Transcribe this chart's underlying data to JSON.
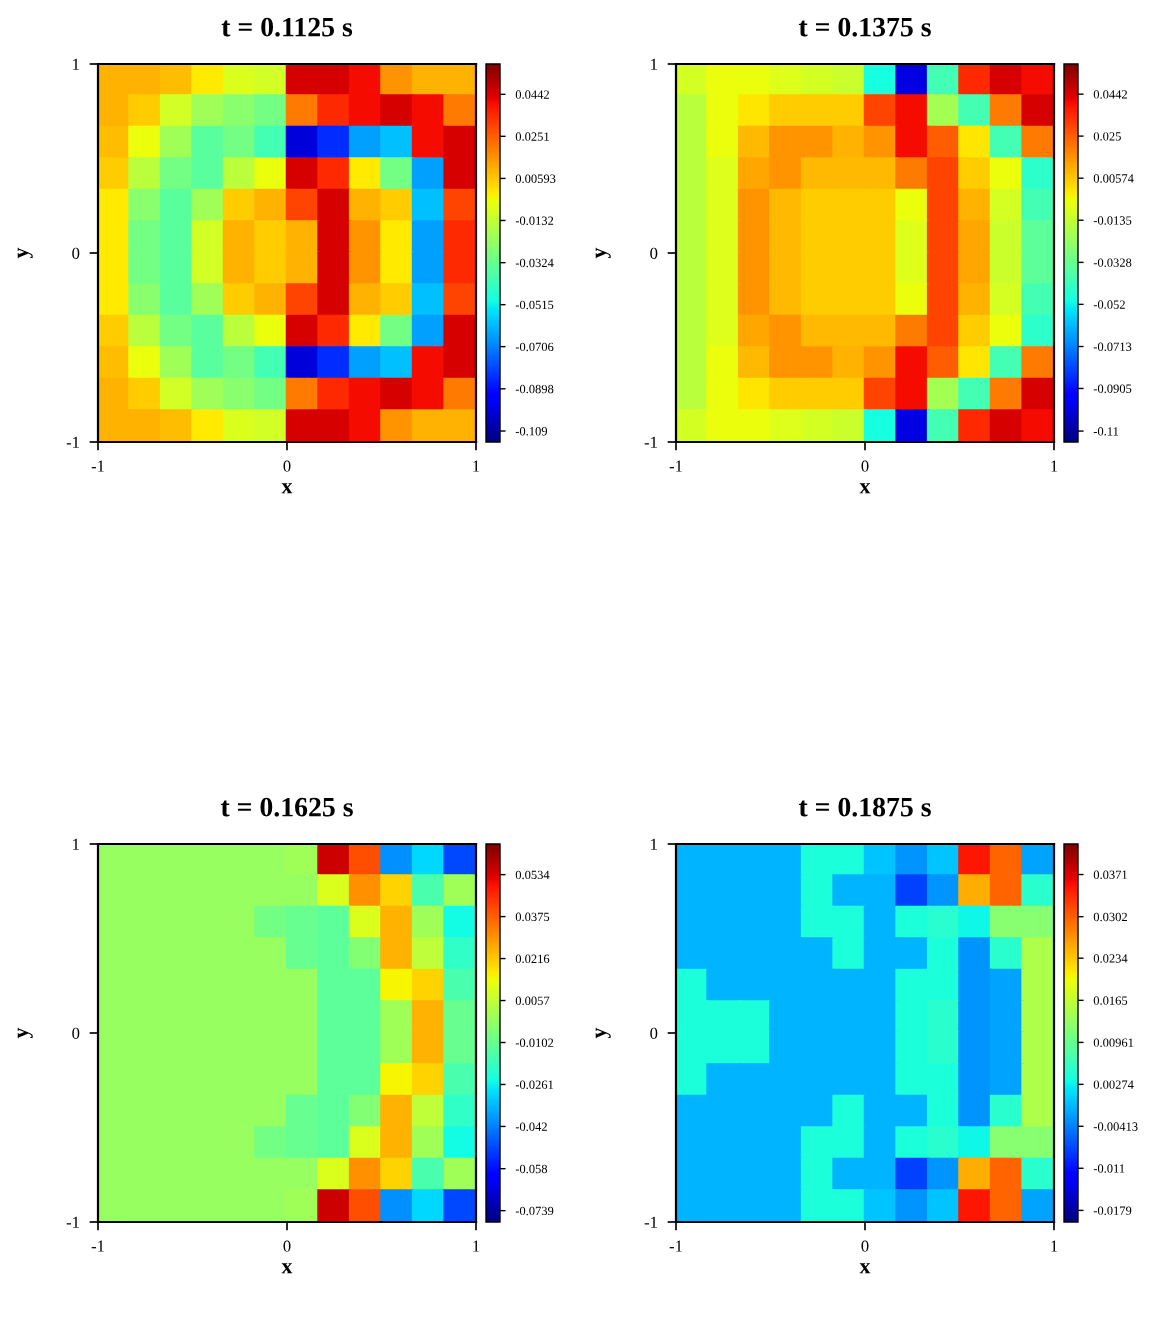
{
  "chart_data": [
    {
      "type": "scatter",
      "marker": "square",
      "title": "t = 0.1125 s",
      "xlabel": "x",
      "ylabel": "y",
      "xlim": [
        -1,
        1
      ],
      "ylim": [
        -1,
        1
      ],
      "xticks": [
        -1,
        0,
        1
      ],
      "yticks": [
        -1,
        0,
        1
      ],
      "clim": [
        -0.114,
        0.058
      ],
      "cticks": [
        0.0442,
        0.0251,
        0.00593,
        -0.0132,
        -0.0324,
        -0.0515,
        -0.0706,
        -0.0898,
        -0.109
      ],
      "x": [
        -0.917,
        -0.75,
        -0.583,
        -0.417,
        -0.25,
        -0.083,
        0.083,
        0.25,
        0.417,
        0.583,
        0.75,
        0.917,
        -0.917,
        -0.75,
        -0.583,
        -0.417,
        -0.25,
        -0.083,
        0.083,
        0.25,
        0.417,
        0.583,
        0.75,
        0.917,
        -0.917,
        -0.75,
        -0.583,
        -0.417,
        -0.25,
        -0.083,
        0.083,
        0.25,
        0.417,
        0.583,
        0.75,
        0.917,
        -0.917,
        -0.75,
        -0.583,
        -0.417,
        -0.25,
        -0.083,
        0.083,
        0.25,
        0.417,
        0.583,
        0.75,
        0.917,
        -0.917,
        -0.75,
        -0.583,
        -0.417,
        -0.25,
        -0.083,
        0.083,
        0.25,
        0.417,
        0.583,
        0.75,
        0.917,
        -0.917,
        -0.75,
        -0.583,
        -0.417,
        -0.25,
        -0.083,
        0.083,
        0.25,
        0.417,
        0.583,
        0.75,
        0.917,
        -0.917,
        -0.75,
        -0.583,
        -0.417,
        -0.25,
        -0.083,
        0.083,
        0.25,
        0.417,
        0.583,
        0.75,
        0.917,
        -0.917,
        -0.75,
        -0.583,
        -0.417,
        -0.25,
        -0.083,
        0.083,
        0.25,
        0.417,
        0.583,
        0.75,
        0.917,
        -0.917,
        -0.75,
        -0.583,
        -0.417,
        -0.25,
        -0.083,
        0.083,
        0.25,
        0.417,
        0.583,
        0.75,
        0.917,
        -0.917,
        -0.75,
        -0.583,
        -0.417,
        -0.25,
        -0.083,
        0.083,
        0.25,
        0.417,
        0.583,
        0.75,
        0.917,
        -0.917,
        -0.75,
        -0.583,
        -0.417,
        -0.25,
        -0.083,
        0.083,
        0.25,
        0.417,
        0.583,
        0.75,
        0.917,
        -0.917,
        -0.75,
        -0.583,
        -0.417,
        -0.25,
        -0.083,
        0.083,
        0.25,
        0.417,
        0.583,
        0.75,
        0.917
      ],
      "values": [
        0.917,
        0.917,
        0.917,
        0.917,
        0.917,
        0.917,
        0.917,
        0.917,
        0.917,
        0.917,
        0.917,
        0.917,
        0.75,
        0.75,
        0.75,
        0.75,
        0.75,
        0.75,
        0.75,
        0.75,
        0.75,
        0.75,
        0.75,
        0.75,
        0.583,
        0.583,
        0.583,
        0.583,
        0.583,
        0.583,
        0.583,
        0.583,
        0.583,
        0.583,
        0.583,
        0.583,
        0.417,
        0.417,
        0.417,
        0.417,
        0.417,
        0.417,
        0.417,
        0.417,
        0.417,
        0.417,
        0.417,
        0.417,
        0.25,
        0.25,
        0.25,
        0.25,
        0.25,
        0.25,
        0.25,
        0.25,
        0.25,
        0.25,
        0.25,
        0.25,
        0.083,
        0.083,
        0.083,
        0.083,
        0.083,
        0.083,
        0.083,
        0.083,
        0.083,
        0.083,
        0.083,
        0.083,
        -0.083,
        -0.083,
        -0.083,
        -0.083,
        -0.083,
        -0.083,
        -0.083,
        -0.083,
        -0.083,
        -0.083,
        -0.083,
        -0.083,
        -0.25,
        -0.25,
        -0.25,
        -0.25,
        -0.25,
        -0.25,
        -0.25,
        -0.25,
        -0.25,
        -0.25,
        -0.25,
        -0.25,
        -0.417,
        -0.417,
        -0.417,
        -0.417,
        -0.417,
        -0.417,
        -0.417,
        -0.417,
        -0.417,
        -0.417,
        -0.417,
        -0.417,
        -0.583,
        -0.583,
        -0.583,
        -0.583,
        -0.583,
        -0.583,
        -0.583,
        -0.583,
        -0.583,
        -0.583,
        -0.583,
        -0.583,
        -0.75,
        -0.75,
        -0.75,
        -0.75,
        -0.75,
        -0.75,
        -0.75,
        -0.75,
        -0.75,
        -0.75,
        -0.75,
        -0.75,
        -0.917,
        -0.917,
        -0.917,
        -0.917,
        -0.917,
        -0.917,
        -0.917,
        -0.917,
        -0.917,
        -0.917,
        -0.917,
        -0.917
      ],
      "cvalues": [
        0.01,
        0.01,
        0.008,
        0.0,
        -0.008,
        -0.01,
        0.045,
        0.045,
        0.04,
        0.015,
        0.01,
        0.01,
        0.01,
        0.005,
        -0.01,
        -0.02,
        -0.025,
        -0.03,
        0.02,
        0.035,
        0.04,
        0.045,
        0.04,
        0.02,
        0.008,
        -0.005,
        -0.02,
        -0.035,
        -0.03,
        -0.04,
        -0.1,
        -0.085,
        -0.065,
        -0.06,
        0.04,
        0.045,
        0.005,
        -0.015,
        -0.03,
        -0.035,
        -0.015,
        -0.005,
        0.045,
        0.035,
        0.0,
        -0.03,
        -0.065,
        0.045,
        0.0,
        -0.025,
        -0.035,
        -0.02,
        0.005,
        0.01,
        0.03,
        0.045,
        0.01,
        0.005,
        -0.06,
        0.03,
        0.0,
        -0.03,
        -0.035,
        -0.01,
        0.01,
        0.005,
        0.01,
        0.045,
        0.015,
        0.0,
        -0.065,
        0.035,
        0.0,
        -0.03,
        -0.035,
        -0.01,
        0.01,
        0.005,
        0.01,
        0.045,
        0.015,
        0.0,
        -0.065,
        0.035,
        0.0,
        -0.025,
        -0.035,
        -0.02,
        0.005,
        0.01,
        0.03,
        0.045,
        0.01,
        0.005,
        -0.06,
        0.03,
        0.005,
        -0.015,
        -0.03,
        -0.035,
        -0.015,
        -0.005,
        0.045,
        0.035,
        0.0,
        -0.03,
        -0.065,
        0.045,
        0.008,
        -0.005,
        -0.02,
        -0.035,
        -0.03,
        -0.04,
        -0.1,
        -0.085,
        -0.065,
        -0.06,
        0.04,
        0.045,
        0.01,
        0.005,
        -0.01,
        -0.02,
        -0.025,
        -0.03,
        0.02,
        0.035,
        0.04,
        0.045,
        0.04,
        0.02,
        0.01,
        0.01,
        0.008,
        0.0,
        -0.008,
        -0.01,
        0.045,
        0.045,
        0.04,
        0.015,
        0.01,
        0.01
      ]
    },
    {
      "type": "scatter",
      "marker": "square",
      "title": "t = 0.1375 s",
      "xlabel": "x",
      "ylabel": "y",
      "xlim": [
        -1,
        1
      ],
      "ylim": [
        -1,
        1
      ],
      "xticks": [
        -1,
        0,
        1
      ],
      "yticks": [
        -1,
        0,
        1
      ],
      "clim": [
        -0.115,
        0.058
      ],
      "cticks": [
        0.0442,
        0.025,
        0.00574,
        -0.0135,
        -0.0328,
        -0.052,
        -0.0713,
        -0.0905,
        -0.11
      ],
      "x": [
        -0.917,
        -0.75,
        -0.583,
        -0.417,
        -0.25,
        -0.083,
        0.083,
        0.25,
        0.417,
        0.583,
        0.75,
        0.917,
        -0.917,
        -0.75,
        -0.583,
        -0.417,
        -0.25,
        -0.083,
        0.083,
        0.25,
        0.417,
        0.583,
        0.75,
        0.917,
        -0.917,
        -0.75,
        -0.583,
        -0.417,
        -0.25,
        -0.083,
        0.083,
        0.25,
        0.417,
        0.583,
        0.75,
        0.917,
        -0.917,
        -0.75,
        -0.583,
        -0.417,
        -0.25,
        -0.083,
        0.083,
        0.25,
        0.417,
        0.583,
        0.75,
        0.917,
        -0.917,
        -0.75,
        -0.583,
        -0.417,
        -0.25,
        -0.083,
        0.083,
        0.25,
        0.417,
        0.583,
        0.75,
        0.917,
        -0.917,
        -0.75,
        -0.583,
        -0.417,
        -0.25,
        -0.083,
        0.083,
        0.25,
        0.417,
        0.583,
        0.75,
        0.917,
        -0.917,
        -0.75,
        -0.583,
        -0.417,
        -0.25,
        -0.083,
        0.083,
        0.25,
        0.417,
        0.583,
        0.75,
        0.917,
        -0.917,
        -0.75,
        -0.583,
        -0.417,
        -0.25,
        -0.083,
        0.083,
        0.25,
        0.417,
        0.583,
        0.75,
        0.917,
        -0.917,
        -0.75,
        -0.583,
        -0.417,
        -0.25,
        -0.083,
        0.083,
        0.25,
        0.417,
        0.583,
        0.75,
        0.917,
        -0.917,
        -0.75,
        -0.583,
        -0.417,
        -0.25,
        -0.083,
        0.083,
        0.25,
        0.417,
        0.583,
        0.75,
        0.917,
        -0.917,
        -0.75,
        -0.583,
        -0.417,
        -0.25,
        -0.083,
        0.083,
        0.25,
        0.417,
        0.583,
        0.75,
        0.917,
        -0.917,
        -0.75,
        -0.583,
        -0.417,
        -0.25,
        -0.083,
        0.083,
        0.25,
        0.417,
        0.583,
        0.75,
        0.917
      ],
      "values": [
        0.917,
        0.917,
        0.917,
        0.917,
        0.917,
        0.917,
        0.917,
        0.917,
        0.917,
        0.917,
        0.917,
        0.917,
        0.75,
        0.75,
        0.75,
        0.75,
        0.75,
        0.75,
        0.75,
        0.75,
        0.75,
        0.75,
        0.75,
        0.75,
        0.583,
        0.583,
        0.583,
        0.583,
        0.583,
        0.583,
        0.583,
        0.583,
        0.583,
        0.583,
        0.583,
        0.583,
        0.417,
        0.417,
        0.417,
        0.417,
        0.417,
        0.417,
        0.417,
        0.417,
        0.417,
        0.417,
        0.417,
        0.417,
        0.25,
        0.25,
        0.25,
        0.25,
        0.25,
        0.25,
        0.25,
        0.25,
        0.25,
        0.25,
        0.25,
        0.25,
        0.083,
        0.083,
        0.083,
        0.083,
        0.083,
        0.083,
        0.083,
        0.083,
        0.083,
        0.083,
        0.083,
        0.083,
        -0.083,
        -0.083,
        -0.083,
        -0.083,
        -0.083,
        -0.083,
        -0.083,
        -0.083,
        -0.083,
        -0.083,
        -0.083,
        -0.083,
        -0.25,
        -0.25,
        -0.25,
        -0.25,
        -0.25,
        -0.25,
        -0.25,
        -0.25,
        -0.25,
        -0.25,
        -0.25,
        -0.25,
        -0.417,
        -0.417,
        -0.417,
        -0.417,
        -0.417,
        -0.417,
        -0.417,
        -0.417,
        -0.417,
        -0.417,
        -0.417,
        -0.417,
        -0.583,
        -0.583,
        -0.583,
        -0.583,
        -0.583,
        -0.583,
        -0.583,
        -0.583,
        -0.583,
        -0.583,
        -0.583,
        -0.583,
        -0.75,
        -0.75,
        -0.75,
        -0.75,
        -0.75,
        -0.75,
        -0.75,
        -0.75,
        -0.75,
        -0.75,
        -0.75,
        -0.75,
        -0.917,
        -0.917,
        -0.917,
        -0.917,
        -0.917,
        -0.917,
        -0.917,
        -0.917,
        -0.917,
        -0.917,
        -0.917,
        -0.917
      ],
      "cvalues": [
        -0.01,
        -0.005,
        -0.005,
        -0.008,
        -0.01,
        -0.012,
        -0.05,
        -0.1,
        -0.04,
        0.035,
        0.045,
        0.04,
        -0.015,
        -0.005,
        0.0,
        0.005,
        0.005,
        0.005,
        0.03,
        0.04,
        -0.02,
        -0.04,
        0.02,
        0.045,
        -0.015,
        -0.005,
        0.008,
        0.015,
        0.015,
        0.01,
        0.015,
        0.04,
        0.025,
        0.0,
        -0.04,
        0.02,
        -0.015,
        -0.008,
        0.012,
        0.015,
        0.008,
        0.008,
        0.008,
        0.02,
        0.03,
        0.005,
        -0.005,
        -0.045,
        -0.015,
        -0.008,
        0.015,
        0.008,
        0.005,
        0.005,
        0.005,
        -0.005,
        0.03,
        0.01,
        -0.01,
        -0.04,
        -0.015,
        -0.008,
        0.015,
        0.008,
        0.005,
        0.005,
        0.005,
        -0.008,
        0.03,
        0.012,
        -0.012,
        -0.035,
        -0.015,
        -0.008,
        0.015,
        0.008,
        0.005,
        0.005,
        0.005,
        -0.008,
        0.03,
        0.012,
        -0.012,
        -0.035,
        -0.015,
        -0.008,
        0.015,
        0.008,
        0.005,
        0.005,
        0.005,
        -0.005,
        0.03,
        0.01,
        -0.01,
        -0.04,
        -0.015,
        -0.008,
        0.012,
        0.015,
        0.008,
        0.008,
        0.008,
        0.02,
        0.03,
        0.005,
        -0.005,
        -0.045,
        -0.015,
        -0.005,
        0.008,
        0.015,
        0.015,
        0.01,
        0.015,
        0.04,
        0.025,
        0.0,
        -0.04,
        0.02,
        -0.015,
        -0.005,
        0.0,
        0.005,
        0.005,
        0.005,
        0.03,
        0.04,
        -0.02,
        -0.04,
        0.02,
        0.045,
        -0.01,
        -0.005,
        -0.005,
        -0.008,
        -0.01,
        -0.012,
        -0.05,
        -0.1,
        -0.04,
        0.035,
        0.045,
        0.04
      ]
    },
    {
      "type": "scatter",
      "marker": "square",
      "title": "t = 0.1625 s",
      "xlabel": "x",
      "ylabel": "y",
      "xlim": [
        -1,
        1
      ],
      "ylim": [
        -1,
        1
      ],
      "xticks": [
        -1,
        0,
        1
      ],
      "yticks": [
        -1,
        0,
        1
      ],
      "clim": [
        -0.0782,
        0.065
      ],
      "cticks": [
        0.0534,
        0.0375,
        0.0216,
        0.0057,
        -0.0102,
        -0.0261,
        -0.042,
        -0.058,
        -0.0739
      ],
      "x": [
        -0.917,
        -0.75,
        -0.583,
        -0.417,
        -0.25,
        -0.083,
        0.083,
        0.25,
        0.417,
        0.583,
        0.75,
        0.917,
        -0.917,
        -0.75,
        -0.583,
        -0.417,
        -0.25,
        -0.083,
        0.083,
        0.25,
        0.417,
        0.583,
        0.75,
        0.917,
        -0.917,
        -0.75,
        -0.583,
        -0.417,
        -0.25,
        -0.083,
        0.083,
        0.25,
        0.417,
        0.583,
        0.75,
        0.917,
        -0.917,
        -0.75,
        -0.583,
        -0.417,
        -0.25,
        -0.083,
        0.083,
        0.25,
        0.417,
        0.583,
        0.75,
        0.917,
        -0.917,
        -0.75,
        -0.583,
        -0.417,
        -0.25,
        -0.083,
        0.083,
        0.25,
        0.417,
        0.583,
        0.75,
        0.917,
        -0.917,
        -0.75,
        -0.583,
        -0.417,
        -0.25,
        -0.083,
        0.083,
        0.25,
        0.417,
        0.583,
        0.75,
        0.917,
        -0.917,
        -0.75,
        -0.583,
        -0.417,
        -0.25,
        -0.083,
        0.083,
        0.25,
        0.417,
        0.583,
        0.75,
        0.917,
        -0.917,
        -0.75,
        -0.583,
        -0.417,
        -0.25,
        -0.083,
        0.083,
        0.25,
        0.417,
        0.583,
        0.75,
        0.917,
        -0.917,
        -0.75,
        -0.583,
        -0.417,
        -0.25,
        -0.083,
        0.083,
        0.25,
        0.417,
        0.583,
        0.75,
        0.917,
        -0.917,
        -0.75,
        -0.583,
        -0.417,
        -0.25,
        -0.083,
        0.083,
        0.25,
        0.417,
        0.583,
        0.75,
        0.917,
        -0.917,
        -0.75,
        -0.583,
        -0.417,
        -0.25,
        -0.083,
        0.083,
        0.25,
        0.417,
        0.583,
        0.75,
        0.917,
        -0.917,
        -0.75,
        -0.583,
        -0.417,
        -0.25,
        -0.083,
        0.083,
        0.25,
        0.417,
        0.583,
        0.75,
        0.917
      ],
      "values": [
        0.917,
        0.917,
        0.917,
        0.917,
        0.917,
        0.917,
        0.917,
        0.917,
        0.917,
        0.917,
        0.917,
        0.917,
        0.75,
        0.75,
        0.75,
        0.75,
        0.75,
        0.75,
        0.75,
        0.75,
        0.75,
        0.75,
        0.75,
        0.75,
        0.583,
        0.583,
        0.583,
        0.583,
        0.583,
        0.583,
        0.583,
        0.583,
        0.583,
        0.583,
        0.583,
        0.583,
        0.417,
        0.417,
        0.417,
        0.417,
        0.417,
        0.417,
        0.417,
        0.417,
        0.417,
        0.417,
        0.417,
        0.417,
        0.25,
        0.25,
        0.25,
        0.25,
        0.25,
        0.25,
        0.25,
        0.25,
        0.25,
        0.25,
        0.25,
        0.25,
        0.083,
        0.083,
        0.083,
        0.083,
        0.083,
        0.083,
        0.083,
        0.083,
        0.083,
        0.083,
        0.083,
        0.083,
        -0.083,
        -0.083,
        -0.083,
        -0.083,
        -0.083,
        -0.083,
        -0.083,
        -0.083,
        -0.083,
        -0.083,
        -0.083,
        -0.083,
        -0.25,
        -0.25,
        -0.25,
        -0.25,
        -0.25,
        -0.25,
        -0.25,
        -0.25,
        -0.25,
        -0.25,
        -0.25,
        -0.25,
        -0.417,
        -0.417,
        -0.417,
        -0.417,
        -0.417,
        -0.417,
        -0.417,
        -0.417,
        -0.417,
        -0.417,
        -0.417,
        -0.417,
        -0.583,
        -0.583,
        -0.583,
        -0.583,
        -0.583,
        -0.583,
        -0.583,
        -0.583,
        -0.583,
        -0.583,
        -0.583,
        -0.583,
        -0.75,
        -0.75,
        -0.75,
        -0.75,
        -0.75,
        -0.75,
        -0.75,
        -0.75,
        -0.75,
        -0.75,
        -0.75,
        -0.75,
        -0.917,
        -0.917,
        -0.917,
        -0.917,
        -0.917,
        -0.917,
        -0.917,
        -0.917,
        -0.917,
        -0.917,
        -0.917,
        -0.917
      ],
      "cvalues": [
        -0.002,
        -0.002,
        -0.002,
        -0.002,
        -0.002,
        -0.002,
        0.0,
        0.055,
        0.04,
        -0.04,
        -0.03,
        -0.05,
        -0.002,
        -0.002,
        -0.002,
        -0.002,
        -0.002,
        -0.002,
        -0.002,
        0.01,
        0.03,
        0.02,
        -0.015,
        0.0,
        -0.002,
        -0.002,
        -0.002,
        -0.002,
        -0.002,
        -0.008,
        -0.01,
        -0.012,
        0.01,
        0.025,
        0.0,
        -0.025,
        -0.002,
        -0.002,
        -0.002,
        -0.002,
        -0.002,
        -0.002,
        -0.01,
        -0.012,
        -0.005,
        0.025,
        0.005,
        -0.02,
        -0.002,
        -0.002,
        -0.002,
        -0.002,
        -0.002,
        -0.002,
        -0.002,
        -0.012,
        -0.012,
        0.015,
        0.02,
        -0.015,
        -0.002,
        -0.002,
        -0.002,
        -0.002,
        -0.002,
        -0.002,
        -0.002,
        -0.012,
        -0.012,
        0.0,
        0.025,
        -0.01,
        -0.002,
        -0.002,
        -0.002,
        -0.002,
        -0.002,
        -0.002,
        -0.002,
        -0.012,
        -0.012,
        0.0,
        0.025,
        -0.01,
        -0.002,
        -0.002,
        -0.002,
        -0.002,
        -0.002,
        -0.002,
        -0.002,
        -0.012,
        -0.012,
        0.015,
        0.02,
        -0.015,
        -0.002,
        -0.002,
        -0.002,
        -0.002,
        -0.002,
        -0.002,
        -0.01,
        -0.012,
        -0.005,
        0.025,
        0.005,
        -0.02,
        -0.002,
        -0.002,
        -0.002,
        -0.002,
        -0.002,
        -0.008,
        -0.01,
        -0.012,
        0.01,
        0.025,
        0.0,
        -0.025,
        -0.002,
        -0.002,
        -0.002,
        -0.002,
        -0.002,
        -0.002,
        -0.002,
        0.01,
        0.03,
        0.02,
        -0.015,
        0.0,
        -0.002,
        -0.002,
        -0.002,
        -0.002,
        -0.002,
        -0.002,
        0.0,
        0.055,
        0.04,
        -0.04,
        -0.03,
        -0.05
      ]
    },
    {
      "type": "scatter",
      "marker": "square",
      "title": "t = 0.1875 s",
      "xlabel": "x",
      "ylabel": "y",
      "xlim": [
        -1,
        1
      ],
      "ylim": [
        -1,
        1
      ],
      "xticks": [
        -1,
        0,
        1
      ],
      "yticks": [
        -1,
        0,
        1
      ],
      "clim": [
        -0.0198,
        0.0421
      ],
      "cticks": [
        0.0371,
        0.0302,
        0.0234,
        0.0165,
        0.00961,
        0.00274,
        -0.00413,
        -0.011,
        -0.0179
      ],
      "x": [
        -0.917,
        -0.75,
        -0.583,
        -0.417,
        -0.25,
        -0.083,
        0.083,
        0.25,
        0.417,
        0.583,
        0.75,
        0.917,
        -0.917,
        -0.75,
        -0.583,
        -0.417,
        -0.25,
        -0.083,
        0.083,
        0.25,
        0.417,
        0.583,
        0.75,
        0.917,
        -0.917,
        -0.75,
        -0.583,
        -0.417,
        -0.25,
        -0.083,
        0.083,
        0.25,
        0.417,
        0.583,
        0.75,
        0.917,
        -0.917,
        -0.75,
        -0.583,
        -0.417,
        -0.25,
        -0.083,
        0.083,
        0.25,
        0.417,
        0.583,
        0.75,
        0.917,
        -0.917,
        -0.75,
        -0.583,
        -0.417,
        -0.25,
        -0.083,
        0.083,
        0.25,
        0.417,
        0.583,
        0.75,
        0.917,
        -0.917,
        -0.75,
        -0.583,
        -0.417,
        -0.25,
        -0.083,
        0.083,
        0.25,
        0.417,
        0.583,
        0.75,
        0.917,
        -0.917,
        -0.75,
        -0.583,
        -0.417,
        -0.25,
        -0.083,
        0.083,
        0.25,
        0.417,
        0.583,
        0.75,
        0.917,
        -0.917,
        -0.75,
        -0.583,
        -0.417,
        -0.25,
        -0.083,
        0.083,
        0.25,
        0.417,
        0.583,
        0.75,
        0.917,
        -0.917,
        -0.75,
        -0.583,
        -0.417,
        -0.25,
        -0.083,
        0.083,
        0.25,
        0.417,
        0.583,
        0.75,
        0.917,
        -0.917,
        -0.75,
        -0.583,
        -0.417,
        -0.25,
        -0.083,
        0.083,
        0.25,
        0.417,
        0.583,
        0.75,
        0.917,
        -0.917,
        -0.75,
        -0.583,
        -0.417,
        -0.25,
        -0.083,
        0.083,
        0.25,
        0.417,
        0.583,
        0.75,
        0.917,
        -0.917,
        -0.75,
        -0.583,
        -0.417,
        -0.25,
        -0.083,
        0.083,
        0.25,
        0.417,
        0.583,
        0.75,
        0.917
      ],
      "values": [
        0.917,
        0.917,
        0.917,
        0.917,
        0.917,
        0.917,
        0.917,
        0.917,
        0.917,
        0.917,
        0.917,
        0.917,
        0.75,
        0.75,
        0.75,
        0.75,
        0.75,
        0.75,
        0.75,
        0.75,
        0.75,
        0.75,
        0.75,
        0.75,
        0.583,
        0.583,
        0.583,
        0.583,
        0.583,
        0.583,
        0.583,
        0.583,
        0.583,
        0.583,
        0.583,
        0.583,
        0.417,
        0.417,
        0.417,
        0.417,
        0.417,
        0.417,
        0.417,
        0.417,
        0.417,
        0.417,
        0.417,
        0.417,
        0.25,
        0.25,
        0.25,
        0.25,
        0.25,
        0.25,
        0.25,
        0.25,
        0.25,
        0.25,
        0.25,
        0.25,
        0.083,
        0.083,
        0.083,
        0.083,
        0.083,
        0.083,
        0.083,
        0.083,
        0.083,
        0.083,
        0.083,
        0.083,
        -0.083,
        -0.083,
        -0.083,
        -0.083,
        -0.083,
        -0.083,
        -0.083,
        -0.083,
        -0.083,
        -0.083,
        -0.083,
        -0.083,
        -0.25,
        -0.25,
        -0.25,
        -0.25,
        -0.25,
        -0.25,
        -0.25,
        -0.25,
        -0.25,
        -0.25,
        -0.25,
        -0.25,
        -0.417,
        -0.417,
        -0.417,
        -0.417,
        -0.417,
        -0.417,
        -0.417,
        -0.417,
        -0.417,
        -0.417,
        -0.417,
        -0.417,
        -0.583,
        -0.583,
        -0.583,
        -0.583,
        -0.583,
        -0.583,
        -0.583,
        -0.583,
        -0.583,
        -0.583,
        -0.583,
        -0.583,
        -0.75,
        -0.75,
        -0.75,
        -0.75,
        -0.75,
        -0.75,
        -0.75,
        -0.75,
        -0.75,
        -0.75,
        -0.75,
        -0.75,
        -0.917,
        -0.917,
        -0.917,
        -0.917,
        -0.917,
        -0.917,
        -0.917,
        -0.917,
        -0.917,
        -0.917,
        -0.917,
        -0.917
      ],
      "cvalues": [
        -0.001,
        -0.001,
        -0.001,
        -0.001,
        0.004,
        0.004,
        0.0,
        -0.003,
        0.0,
        0.035,
        0.03,
        -0.002,
        -0.001,
        -0.001,
        -0.001,
        -0.001,
        0.004,
        -0.001,
        -0.001,
        -0.008,
        -0.003,
        0.025,
        0.03,
        0.005,
        -0.001,
        -0.001,
        -0.001,
        -0.001,
        0.004,
        0.004,
        -0.001,
        0.004,
        0.005,
        0.003,
        0.012,
        0.012,
        -0.001,
        -0.001,
        -0.001,
        -0.001,
        -0.001,
        0.004,
        -0.001,
        -0.001,
        0.004,
        -0.003,
        0.005,
        0.015,
        0.004,
        -0.001,
        -0.001,
        -0.001,
        -0.001,
        -0.001,
        -0.001,
        0.004,
        0.004,
        -0.003,
        -0.002,
        0.015,
        0.004,
        0.004,
        0.004,
        -0.001,
        -0.001,
        -0.001,
        -0.001,
        0.004,
        0.005,
        -0.003,
        -0.002,
        0.015,
        0.004,
        0.004,
        0.004,
        -0.001,
        -0.001,
        -0.001,
        -0.001,
        0.004,
        0.005,
        -0.003,
        -0.002,
        0.015,
        0.004,
        -0.001,
        -0.001,
        -0.001,
        -0.001,
        -0.001,
        -0.001,
        0.004,
        0.004,
        -0.003,
        -0.002,
        0.015,
        -0.001,
        -0.001,
        -0.001,
        -0.001,
        -0.001,
        0.004,
        -0.001,
        -0.001,
        0.004,
        -0.003,
        0.005,
        0.015,
        -0.001,
        -0.001,
        -0.001,
        -0.001,
        0.004,
        0.004,
        -0.001,
        0.004,
        0.005,
        0.003,
        0.012,
        0.012,
        -0.001,
        -0.001,
        -0.001,
        -0.001,
        0.004,
        -0.001,
        -0.001,
        -0.008,
        -0.003,
        0.025,
        0.03,
        0.005,
        -0.001,
        -0.001,
        -0.001,
        -0.001,
        0.004,
        0.004,
        0.0,
        -0.003,
        0.0,
        0.035,
        0.03,
        -0.002
      ]
    }
  ]
}
